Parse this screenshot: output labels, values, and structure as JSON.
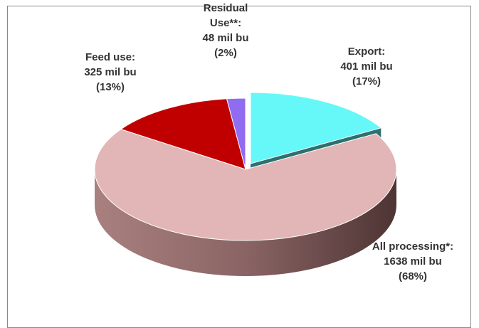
{
  "chart_data": {
    "type": "pie",
    "categories": [
      "Export:",
      "All processing*:",
      "Feed use:",
      "Residual Use**:"
    ],
    "values": [
      401,
      1638,
      325,
      48
    ],
    "value_labels": [
      "401 mil bu",
      "1638 mil bu",
      "325 mil bu",
      "48 mil bu"
    ],
    "shares": [
      17,
      68,
      13,
      2
    ],
    "share_labels": [
      "(17%)",
      "(68%)",
      "(13%)",
      "(2%)"
    ],
    "colors": [
      "#66f8f8",
      "#e2b6b6",
      "#c00000",
      "#8f6cf0"
    ]
  }
}
